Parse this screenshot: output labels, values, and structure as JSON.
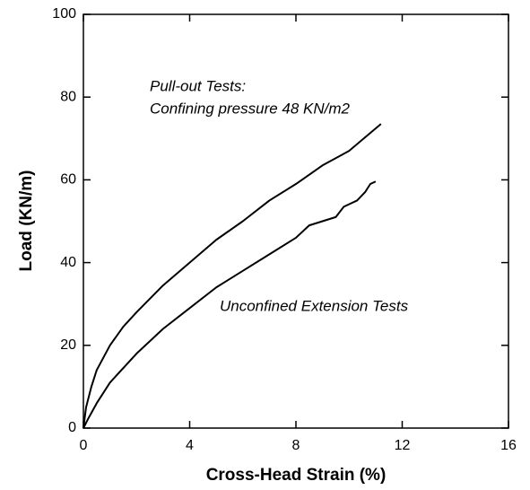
{
  "chart_data": {
    "type": "line",
    "xlabel": "Cross-Head Strain (%)",
    "ylabel": "Load (KN/m)",
    "annotations": [
      "Pull-out Tests:",
      "Confining pressure 48 KN/m2",
      "Unconfined Extension Tests"
    ],
    "xlim": [
      0,
      16
    ],
    "xticks": [
      0,
      4,
      8,
      12,
      16
    ],
    "ylim": [
      0,
      100
    ],
    "yticks": [
      0,
      20,
      40,
      60,
      80,
      100
    ],
    "grid": false,
    "series": [
      {
        "color": "#000000",
        "x": [
          0,
          0.1,
          0.3,
          0.5,
          1,
          1.5,
          2,
          3,
          4,
          5,
          6,
          7,
          8,
          9,
          10,
          11.2
        ],
        "values": [
          0,
          5,
          10,
          14,
          20,
          24.5,
          28,
          34.5,
          40,
          45.5,
          50,
          55,
          59,
          63.5,
          67,
          73.5
        ]
      },
      {
        "color": "#000000",
        "x": [
          0,
          0.2,
          0.5,
          1,
          2,
          3,
          4,
          5,
          6,
          7,
          8,
          8.5,
          9,
          9.5,
          9.8,
          10.3,
          10.6,
          10.8,
          11
        ],
        "values": [
          0,
          2.5,
          6,
          11,
          18,
          24,
          29,
          34,
          38,
          42,
          46,
          49,
          50,
          51,
          53.5,
          55,
          57,
          59,
          59.6
        ]
      }
    ]
  }
}
